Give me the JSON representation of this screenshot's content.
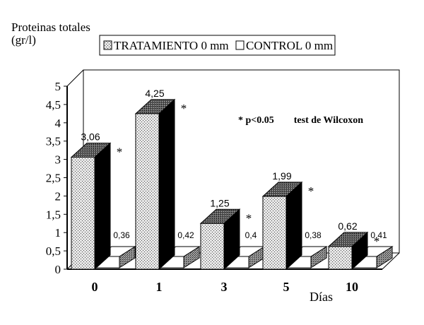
{
  "chart_data": {
    "type": "bar",
    "title": "",
    "ylabel": "Proteinas totales\n(gr/l)",
    "xlabel": "Días",
    "ylim": [
      0,
      5
    ],
    "yticks": [
      "0",
      "0,5",
      "1",
      "1,5",
      "2",
      "2,5",
      "3",
      "3,5",
      "4",
      "4,5",
      "5"
    ],
    "categories": [
      "0",
      "1",
      "3",
      "5",
      "10"
    ],
    "series": [
      {
        "name": "TRATAMIENTO 0 mm",
        "values": [
          3.06,
          4.25,
          1.25,
          1.99,
          0.62
        ],
        "labels": [
          "3,06",
          "4,25",
          "1,25",
          "1,99",
          "0,62"
        ],
        "pattern": "stipple"
      },
      {
        "name": "CONTROL 0 mm",
        "values": [
          0.36,
          0.42,
          0.4,
          0.38,
          0.41
        ],
        "labels": [
          "0,36",
          "0,42",
          "0,4",
          "0,38",
          "0,41"
        ],
        "pattern": "white"
      }
    ],
    "significance_marker": "*",
    "significant_categories": [
      "0",
      "1",
      "3",
      "5",
      "10"
    ],
    "annotation": "* p<0.05        test de Wilcoxon",
    "legend_position": "top",
    "grid": false,
    "colors": {
      "stipple_light": "#e6e6e6",
      "stipple_dots": "#4a4a4a",
      "bar_dark": "#000000",
      "top_face": "#555555",
      "control_face": "#ffffff"
    }
  }
}
